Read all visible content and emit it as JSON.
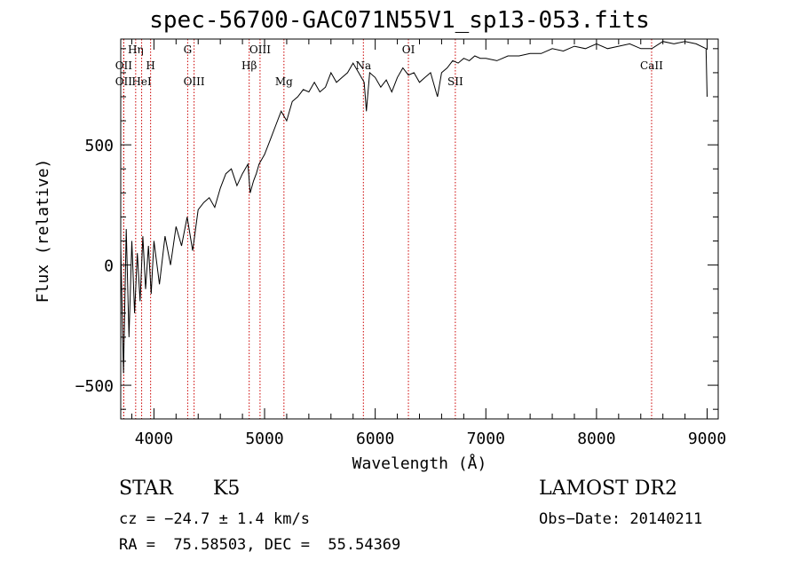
{
  "chart_data": {
    "type": "line",
    "title": "spec-56700-GAC071N55V1_sp13-053.fits",
    "xlabel": "Wavelength (Å)",
    "ylabel": "Flux (relative)",
    "xlim": [
      3700,
      9100
    ],
    "ylim": [
      -640,
      940
    ],
    "x_ticks": [
      4000,
      5000,
      6000,
      7000,
      8000,
      9000
    ],
    "x_tick_labels": [
      "4000",
      "5000",
      "6000",
      "7000",
      "8000",
      "9000"
    ],
    "y_ticks": [
      -500,
      0,
      500
    ],
    "y_tick_labels": [
      "−500",
      "0",
      "500"
    ],
    "series": [
      {
        "x": [
          3700,
          3725,
          3750,
          3775,
          3800,
          3825,
          3850,
          3875,
          3900,
          3925,
          3950,
          3975,
          4000,
          4050,
          4100,
          4150,
          4200,
          4250,
          4300,
          4350,
          4400,
          4450,
          4500,
          4550,
          4600,
          4650,
          4700,
          4750,
          4800,
          4850,
          4870,
          4900,
          4925,
          4950,
          5000,
          5050,
          5100,
          5150,
          5200,
          5250,
          5300,
          5350,
          5400,
          5450,
          5500,
          5550,
          5600,
          5650,
          5700,
          5750,
          5800,
          5850,
          5900,
          5920,
          5950,
          6000,
          6050,
          6100,
          6150,
          6200,
          6250,
          6300,
          6350,
          6400,
          6450,
          6500,
          6550,
          6563,
          6600,
          6650,
          6700,
          6750,
          6800,
          6850,
          6900,
          6950,
          7000,
          7100,
          7200,
          7300,
          7400,
          7500,
          7600,
          7700,
          7800,
          7900,
          8000,
          8100,
          8200,
          8300,
          8400,
          8500,
          8600,
          8700,
          8800,
          8900,
          8990,
          9000
        ],
        "y": [
          80,
          -450,
          150,
          -300,
          100,
          -200,
          50,
          -150,
          120,
          -100,
          80,
          -120,
          100,
          -80,
          120,
          0,
          160,
          80,
          200,
          60,
          230,
          260,
          280,
          240,
          320,
          380,
          400,
          330,
          380,
          420,
          300,
          350,
          380,
          420,
          460,
          520,
          580,
          640,
          600,
          680,
          700,
          730,
          720,
          760,
          720,
          740,
          800,
          760,
          780,
          800,
          840,
          800,
          760,
          640,
          800,
          780,
          740,
          770,
          720,
          780,
          820,
          790,
          800,
          760,
          780,
          800,
          720,
          700,
          800,
          820,
          850,
          840,
          860,
          850,
          870,
          860,
          860,
          850,
          870,
          870,
          880,
          880,
          900,
          890,
          910,
          900,
          920,
          900,
          910,
          920,
          900,
          900,
          930,
          920,
          930,
          920,
          900,
          700
        ]
      }
    ],
    "line_markers": [
      {
        "label": "Hη",
        "x": 3835,
        "row": 1
      },
      {
        "label": "OII",
        "x": 3727,
        "row": 2
      },
      {
        "label": "H",
        "x": 3970,
        "row": 2
      },
      {
        "label": "OII",
        "x": 3727,
        "row": 3
      },
      {
        "label": "HeI",
        "x": 3889,
        "row": 3
      },
      {
        "label": "G",
        "x": 4305,
        "row": 1
      },
      {
        "label": "OIII",
        "x": 4363,
        "row": 3
      },
      {
        "label": "OIII",
        "x": 4959,
        "row": 1
      },
      {
        "label": "Hβ",
        "x": 4861,
        "row": 2
      },
      {
        "label": "Mg",
        "x": 5175,
        "row": 3
      },
      {
        "label": "Na",
        "x": 5893,
        "row": 2
      },
      {
        "label": "OI",
        "x": 6300,
        "row": 1
      },
      {
        "label": "SII",
        "x": 6724,
        "row": 3
      },
      {
        "label": "CaII",
        "x": 8498,
        "row": 2
      }
    ],
    "grid": false
  },
  "info": {
    "object_class": "STAR",
    "subclass": "K5",
    "survey": "LAMOST DR2",
    "cz": "cz = −24.7 ± 1.4 km/s",
    "obs_date": "Obs−Date: 20140211",
    "coords": "RA =  75.58503, DEC =  55.54369"
  },
  "colors": {
    "line": "#000000",
    "marker": "#cc0000",
    "background": "#ffffff"
  }
}
